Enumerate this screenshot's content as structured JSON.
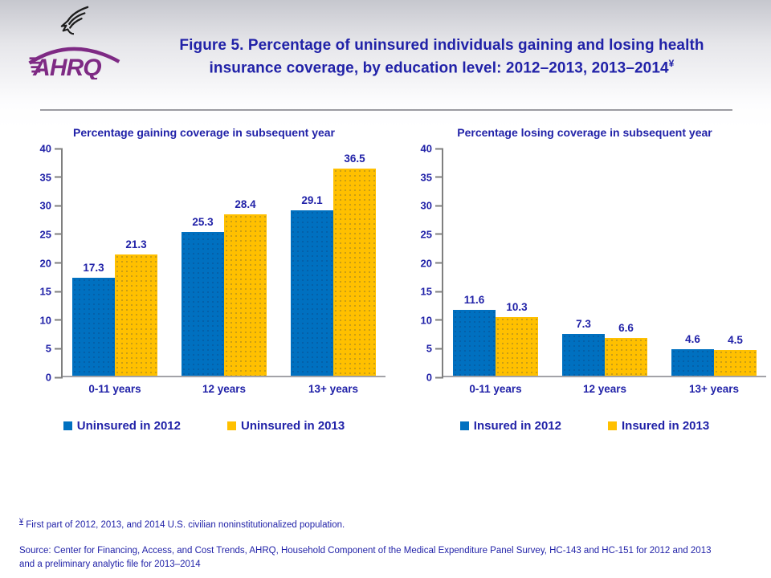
{
  "header": {
    "org_abbrev": "AHRQ",
    "title_main": "Figure 5. Percentage of uninsured individuals gaining and losing health insurance coverage, by education level: 2012–2013, 2013–2014",
    "title_sup": "¥"
  },
  "colors": {
    "text_blue": "#2122A8",
    "bar_blue": "#0070C0",
    "bar_yellow": "#FFC000",
    "logo_purple": "#7E2A84",
    "axis_gray": "#7f7f7f"
  },
  "chart_data": [
    {
      "type": "bar",
      "title": "Percentage gaining coverage in subsequent year",
      "categories": [
        "0-11 years",
        "12 years",
        "13+ years"
      ],
      "series": [
        {
          "name": "Uninsured in 2012",
          "color_key": "bar_blue",
          "values": [
            17.3,
            25.3,
            29.1
          ]
        },
        {
          "name": "Uninsured in 2013",
          "color_key": "bar_yellow",
          "values": [
            21.3,
            28.4,
            36.5
          ]
        }
      ],
      "ylabel": "",
      "xlabel": "",
      "ylim": [
        0,
        40
      ],
      "ytick_step": 5,
      "grid": false,
      "legend_position": "bottom"
    },
    {
      "type": "bar",
      "title": "Percentage losing coverage in subsequent year",
      "categories": [
        "0-11 years",
        "12 years",
        "13+ years"
      ],
      "series": [
        {
          "name": "Insured in 2012",
          "color_key": "bar_blue",
          "values": [
            11.6,
            7.3,
            4.6
          ]
        },
        {
          "name": "Insured in 2013",
          "color_key": "bar_yellow",
          "values": [
            10.3,
            6.6,
            4.5
          ]
        }
      ],
      "ylabel": "",
      "xlabel": "",
      "ylim": [
        0,
        40
      ],
      "ytick_step": 5,
      "grid": false,
      "legend_position": "bottom"
    }
  ],
  "footer": {
    "footnote_sup": "¥",
    "footnote_text": " First part of 2012, 2013, and 2014 U.S. civilian noninstitutionalized population.",
    "source_line1": "Source: Center for Financing, Access, and Cost Trends, AHRQ, Household Component of the Medical Expenditure Panel Survey,  HC-143 and HC-151 for 2012 and 2013",
    "source_line2": "and a preliminary analytic file for 2013–2014"
  }
}
